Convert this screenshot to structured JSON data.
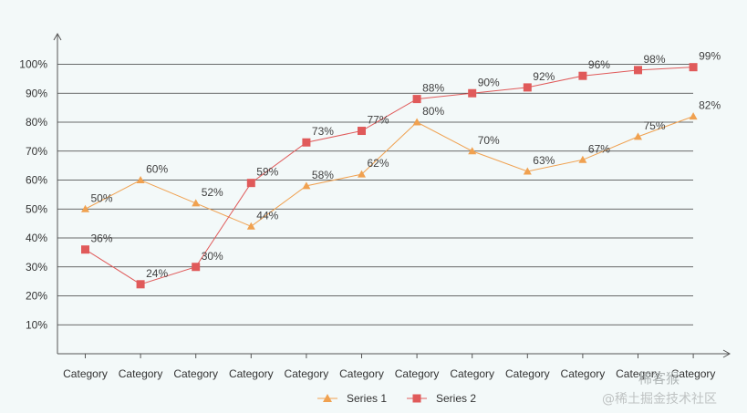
{
  "chart_data": {
    "type": "line",
    "title": "",
    "xlabel": "",
    "ylabel": "",
    "categories": [
      "Category",
      "Category",
      "Category",
      "Category",
      "Category",
      "Category",
      "Category",
      "Category",
      "Category",
      "Category",
      "Category",
      "Category"
    ],
    "ylim": [
      0,
      110
    ],
    "yticks": [
      10,
      20,
      30,
      40,
      50,
      60,
      70,
      80,
      90,
      100
    ],
    "ytick_labels": [
      "10%",
      "20%",
      "30%",
      "40%",
      "50%",
      "60%",
      "70%",
      "80%",
      "90%",
      "100%"
    ],
    "grid": true,
    "legend_position": "bottom-center",
    "series": [
      {
        "name": "Series 1",
        "marker": "triangle",
        "color": "#f0a150",
        "values": [
          50,
          60,
          52,
          44,
          58,
          62,
          80,
          70,
          63,
          67,
          75,
          82
        ],
        "labels": [
          "50%",
          "60%",
          "52%",
          "44%",
          "58%",
          "62%",
          "80%",
          "70%",
          "63%",
          "67%",
          "75%",
          "82%"
        ]
      },
      {
        "name": "Series 2",
        "marker": "square",
        "color": "#e05a5a",
        "values": [
          36,
          24,
          30,
          59,
          73,
          77,
          88,
          90,
          92,
          96,
          98,
          99
        ],
        "labels": [
          "36%",
          "24%",
          "30%",
          "59%",
          "73%",
          "77%",
          "88%",
          "90%",
          "92%",
          "96%",
          "98%",
          "99%"
        ]
      }
    ]
  },
  "watermark": {
    "top": "稀客猴",
    "bottom": "@稀土掘金技术社区"
  }
}
